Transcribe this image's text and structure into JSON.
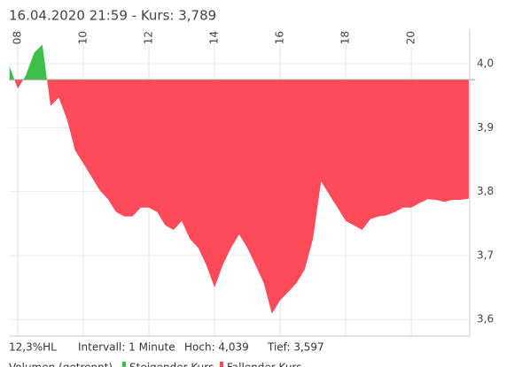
{
  "chart_data": {
    "type": "area",
    "title": "16.04.2020 21:59  -  Kurs: 3,789",
    "x": [
      7.75,
      8.0,
      8.25,
      8.5,
      8.75,
      9.0,
      9.25,
      9.5,
      9.75,
      10.0,
      10.25,
      10.5,
      10.75,
      11.0,
      11.25,
      11.5,
      11.75,
      12.0,
      12.25,
      12.5,
      12.75,
      13.0,
      13.25,
      13.5,
      13.75,
      14.0,
      14.25,
      14.5,
      14.75,
      15.0,
      15.25,
      15.5,
      15.75,
      16.0,
      16.25,
      16.5,
      16.75,
      17.0,
      17.25,
      17.5,
      17.75,
      18.0,
      18.25,
      18.5,
      18.75,
      19.0,
      19.25,
      19.5,
      19.75,
      20.0,
      20.25,
      20.5,
      20.75,
      21.0,
      21.25,
      21.5,
      21.75
    ],
    "values": [
      3.996,
      3.961,
      3.982,
      4.017,
      4.03,
      3.934,
      3.947,
      3.913,
      3.864,
      3.844,
      3.823,
      3.802,
      3.788,
      3.768,
      3.761,
      3.761,
      3.775,
      3.775,
      3.768,
      3.747,
      3.74,
      3.754,
      3.726,
      3.712,
      3.685,
      3.65,
      3.685,
      3.712,
      3.733,
      3.712,
      3.685,
      3.657,
      3.609,
      3.63,
      3.643,
      3.657,
      3.678,
      3.726,
      3.816,
      3.795,
      3.775,
      3.754,
      3.747,
      3.74,
      3.757,
      3.761,
      3.763,
      3.768,
      3.775,
      3.775,
      3.782,
      3.788,
      3.787,
      3.784,
      3.787,
      3.787,
      3.789
    ],
    "reference": 3.975,
    "up_color": "#3cc04a",
    "down_color": "#ff4a5a",
    "xlim": [
      7.73,
      21.78
    ],
    "xticks": [
      {
        "value": 8,
        "label": "08"
      },
      10,
      12,
      14,
      16,
      18,
      20
    ],
    "ylim": [
      3.574,
      4.054
    ],
    "yticks": [
      {
        "value": 4.0,
        "label": "4,0"
      },
      {
        "value": 3.9,
        "label": "3,9"
      },
      {
        "value": 3.8,
        "label": "3,8"
      },
      {
        "value": 3.7,
        "label": "3,7"
      },
      {
        "value": 3.6,
        "label": "3,6"
      }
    ],
    "grid": true,
    "info": [
      "12,3%HL",
      "Intervall: 1 Minute",
      "Hoch: 4,039",
      "Tief: 3,597"
    ],
    "legend": [
      "Volumen (getrennt)",
      "Steigender Kurs",
      "Fallender Kurs"
    ]
  }
}
